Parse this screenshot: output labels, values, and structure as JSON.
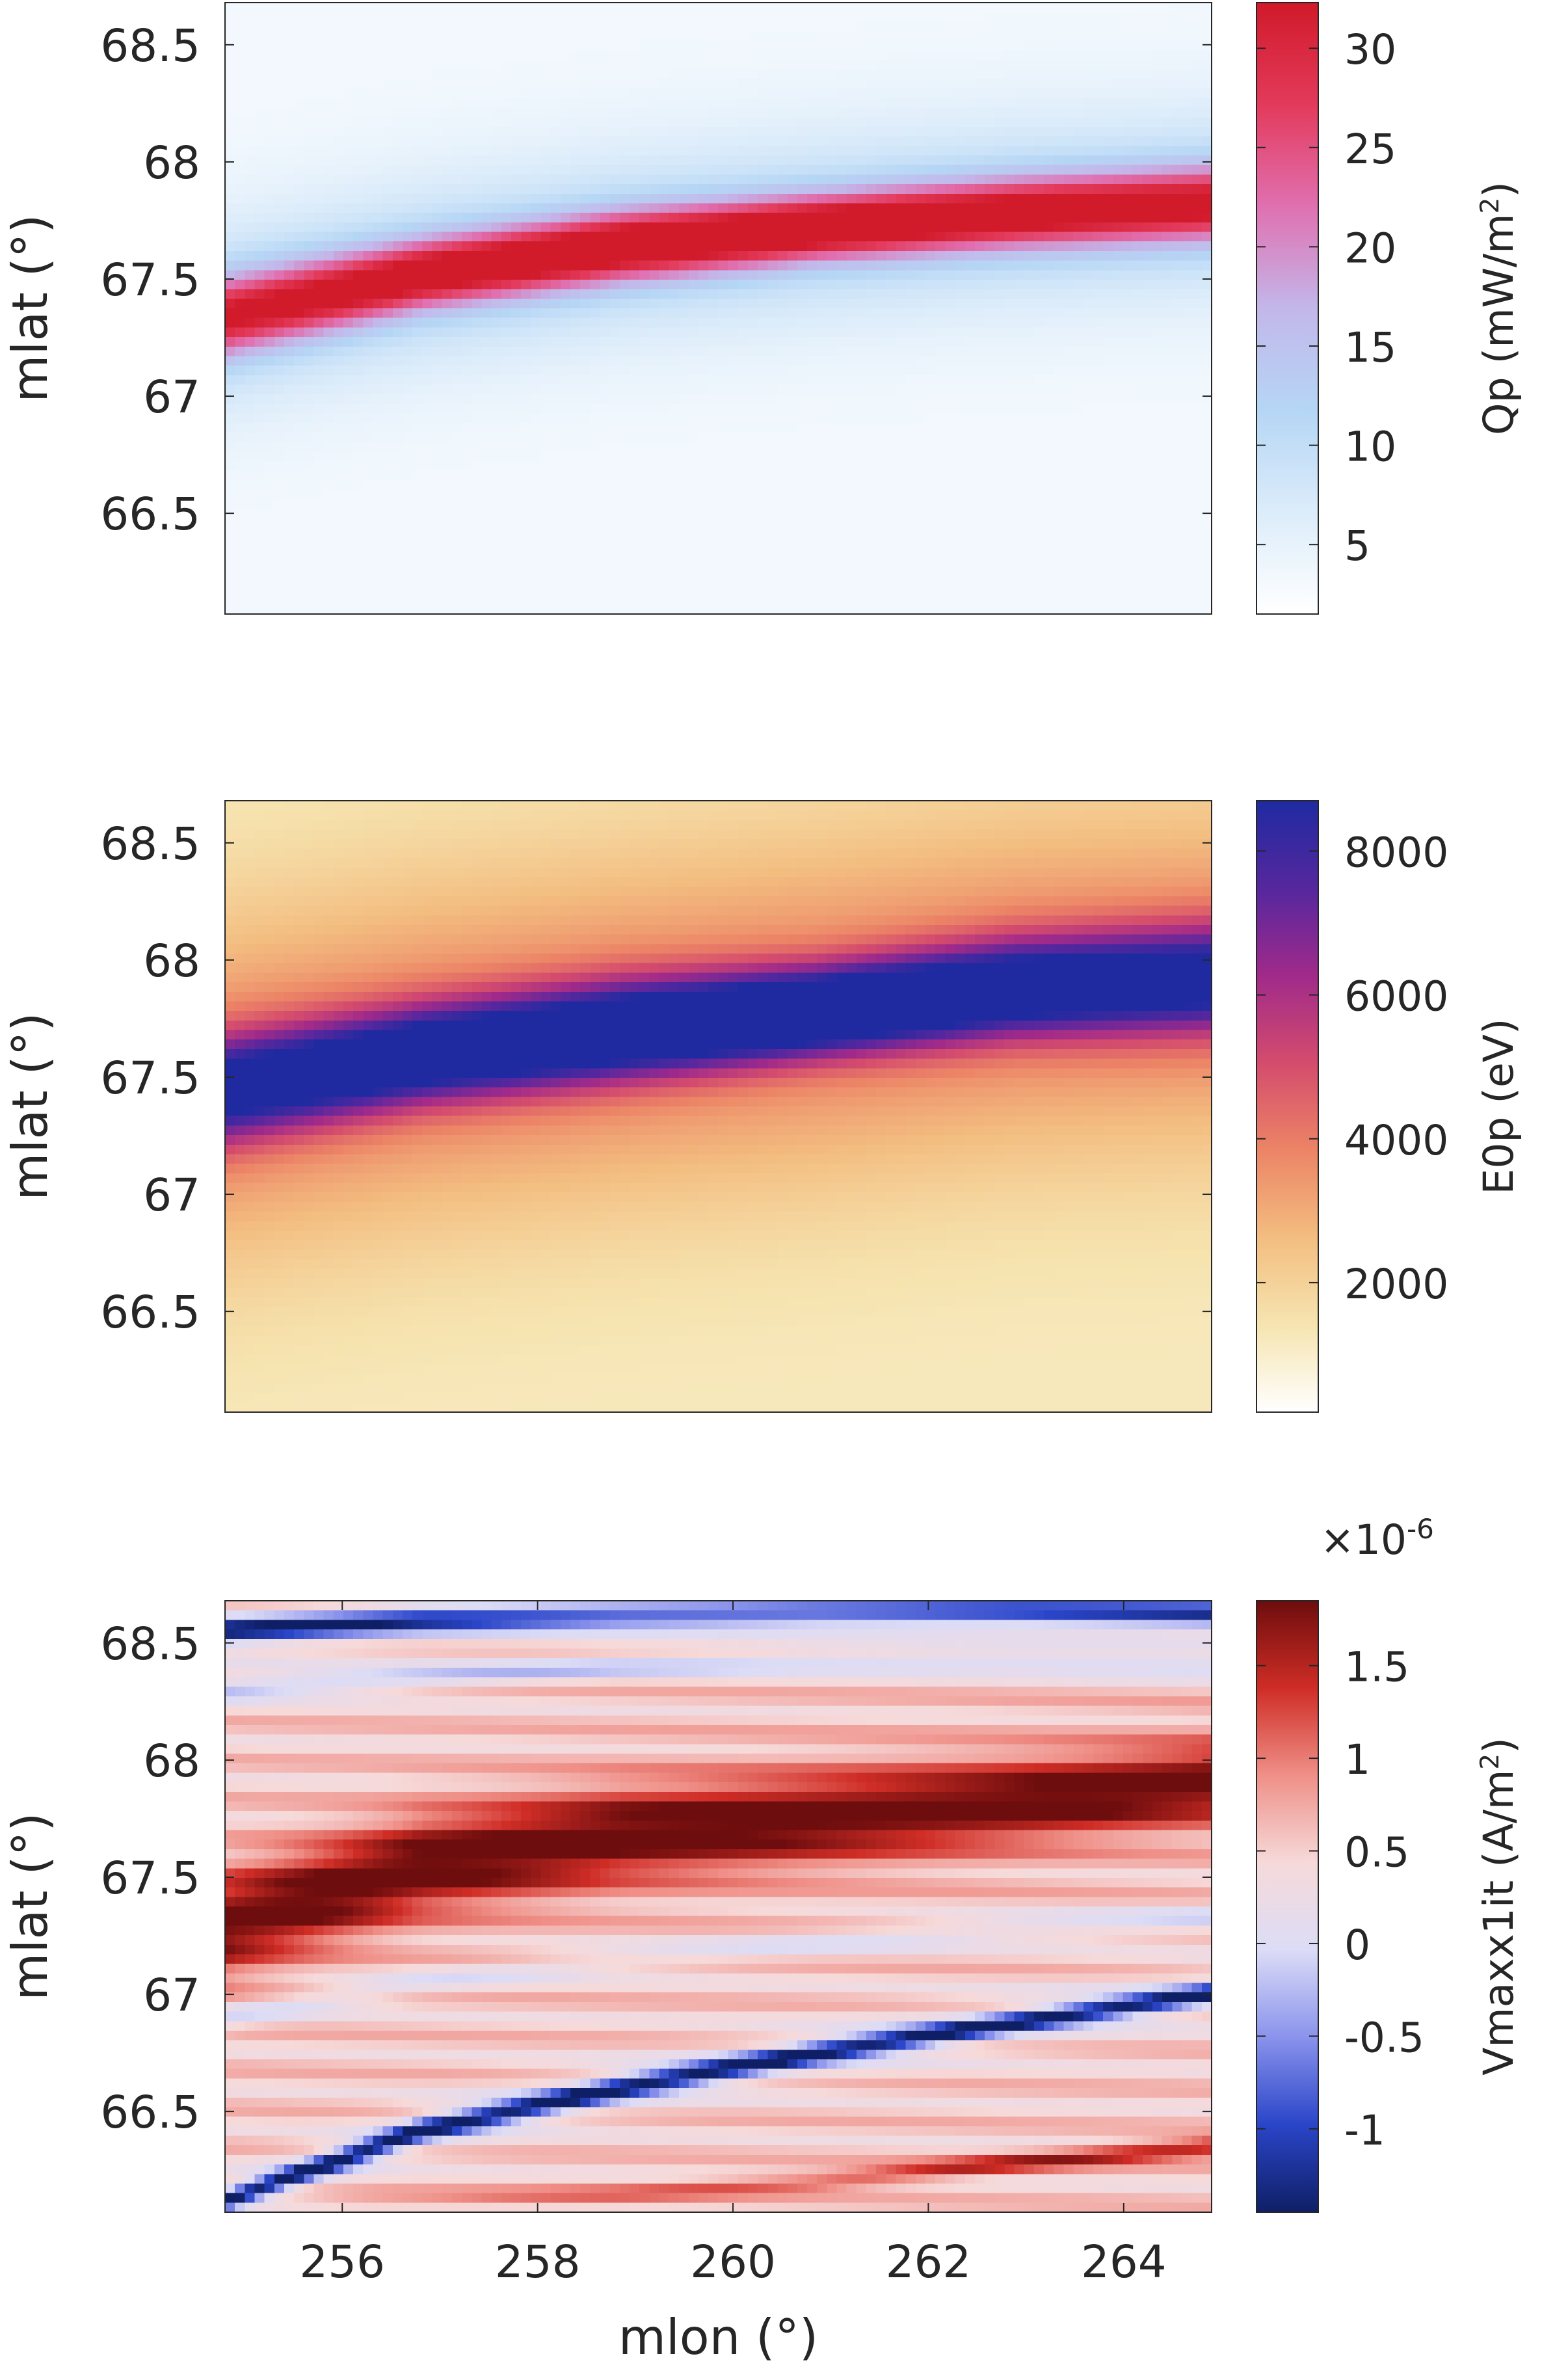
{
  "chart_data": [
    {
      "type": "heatmap",
      "panel": "top",
      "xlabel": "",
      "ylabel": "mlat (°)",
      "xlim": [
        254.8,
        264.9
      ],
      "ylim": [
        66.07,
        68.68
      ],
      "yticks": [
        66.5,
        67,
        67.5,
        68,
        68.5
      ],
      "ytick_labels": [
        "66.5",
        "67",
        "67.5",
        "68",
        "68.5"
      ],
      "xticks": [],
      "colorbar": {
        "label": "Qp (mW/m²)",
        "label_main": "Qp (mW/m",
        "label_sup": "2",
        "label_end": ")",
        "range": [
          1.5,
          32.3
        ],
        "ticks": [
          5,
          10,
          15,
          20,
          25,
          30
        ],
        "tick_labels": [
          "5",
          "10",
          "15",
          "20",
          "25",
          "30"
        ],
        "multiplier": "",
        "colormap": [
          "#ffffff",
          "#dcecfa",
          "#b5d6f5",
          "#c3b7ea",
          "#e070b0",
          "#e33a5b",
          "#d11a2a"
        ]
      },
      "field": {
        "background": 0.06,
        "bands": [
          {
            "lat": [
              67.34,
              67.52,
              67.64,
              67.72,
              67.78,
              67.82
            ],
            "peak": [
              0.72,
              0.85,
              0.92,
              0.96,
              0.86,
              0.78
            ],
            "halfwidth": [
              0.16,
              0.14,
              0.14,
              0.13,
              0.14,
              0.15
            ],
            "halo": 0.25,
            "halowidth": 0.42
          }
        ]
      }
    },
    {
      "type": "heatmap",
      "panel": "middle",
      "xlabel": "",
      "ylabel": "mlat (°)",
      "xlim": [
        254.8,
        264.9
      ],
      "ylim": [
        66.07,
        68.68
      ],
      "yticks": [
        66.5,
        67,
        67.5,
        68,
        68.5
      ],
      "ytick_labels": [
        "66.5",
        "67",
        "67.5",
        "68",
        "68.5"
      ],
      "xticks": [],
      "colorbar": {
        "label": "E0p (eV)",
        "label_main": "E0p (eV)",
        "label_sup": "",
        "label_end": "",
        "range": [
          200,
          8700
        ],
        "ticks": [
          2000,
          4000,
          6000,
          8000
        ],
        "tick_labels": [
          "2000",
          "4000",
          "6000",
          "8000"
        ],
        "multiplier": "",
        "colormap": [
          "#ffffff",
          "#f6e4b0",
          "#f3bd80",
          "#ec8466",
          "#d44c6d",
          "#a02a8a",
          "#55279e",
          "#1f2aa0"
        ]
      },
      "field": {
        "background": 0.12,
        "bands": [
          {
            "lat": [
              67.45,
              67.6,
              67.7,
              67.78,
              67.88,
              67.92
            ],
            "peak": [
              0.72,
              0.84,
              0.9,
              0.98,
              0.82,
              0.72
            ],
            "halfwidth": [
              0.22,
              0.2,
              0.2,
              0.18,
              0.2,
              0.22
            ],
            "halo": 0.32,
            "halowidth": 0.75
          }
        ]
      }
    },
    {
      "type": "heatmap",
      "panel": "bottom",
      "xlabel": "mlon (°)",
      "ylabel": "mlat (°)",
      "xlim": [
        254.8,
        264.9
      ],
      "ylim": [
        66.07,
        68.68
      ],
      "yticks": [
        66.5,
        67,
        67.5,
        68,
        68.5
      ],
      "ytick_labels": [
        "66.5",
        "67",
        "67.5",
        "68",
        "68.5"
      ],
      "xticks": [
        256,
        258,
        260,
        262,
        264
      ],
      "xtick_labels": [
        "256",
        "258",
        "260",
        "262",
        "264"
      ],
      "colorbar": {
        "label": "Vmaxx1it (A/m²)",
        "label_main": "Vmaxx1it (A/m",
        "label_sup": "2",
        "label_end": ")",
        "range": [
          -1.45,
          1.85
        ],
        "ticks": [
          -1,
          -0.5,
          0,
          0.5,
          1,
          1.5
        ],
        "tick_labels": [
          "-1",
          "-0.5",
          "0",
          "0.5",
          "1",
          "1.5"
        ],
        "multiplier": "×10-6",
        "multiplier_base": "×10",
        "multiplier_exp": "-6",
        "colormap": [
          "#0f1f66",
          "#2a45c8",
          "#8a93ec",
          "#dcdcf6",
          "#f6dada",
          "#ef9088",
          "#cf2d26",
          "#6e0d0d"
        ]
      },
      "field": {
        "background": 0.6,
        "bands": [
          {
            "lat": [
              67.3,
              67.55,
              67.68,
              67.75,
              67.82,
              67.9
            ],
            "peak": [
              0.38,
              0.4,
              0.4,
              0.4,
              0.4,
              0.4
            ],
            "halfwidth": [
              0.2,
              0.19,
              0.18,
              0.17,
              0.16,
              0.15
            ],
            "halo": 0.06,
            "halowidth": 0.35
          },
          {
            "lat": [
              66.12,
              66.42,
              66.6,
              66.75,
              66.88,
              67.0
            ],
            "peak": [
              -0.55,
              -0.55,
              -0.55,
              -0.55,
              -0.55,
              -0.55
            ],
            "halfwidth": [
              0.04,
              0.045,
              0.045,
              0.045,
              0.04,
              0.04
            ],
            "halo": -0.1,
            "halowidth": 0.12
          },
          {
            "lat": [
              68.55,
              68.6,
              68.62,
              68.63,
              68.63,
              68.62
            ],
            "peak": [
              -0.5,
              -0.45,
              -0.35,
              -0.35,
              -0.4,
              -0.45
            ],
            "halfwidth": [
              0.05,
              0.05,
              0.05,
              0.05,
              0.05,
              0.05
            ],
            "halo": -0.1,
            "halowidth": 0.14
          },
          {
            "lat": [
              68.3,
              68.35,
              68.4,
              68.42,
              68.42,
              68.4
            ],
            "peak": [
              -0.25,
              -0.2,
              -0.18,
              -0.18,
              -0.2,
              -0.22
            ],
            "halfwidth": [
              0.05,
              0.05,
              0.05,
              0.05,
              0.05,
              0.05
            ],
            "halo": 0,
            "halowidth": 0.1
          },
          {
            "lat": [
              66.9,
              67.05,
              67.15,
              67.22,
              67.28,
              67.32
            ],
            "peak": [
              -0.15,
              -0.12,
              -0.1,
              -0.12,
              -0.14,
              -0.16
            ],
            "halfwidth": [
              0.06,
              0.06,
              0.06,
              0.06,
              0.06,
              0.06
            ],
            "halo": 0,
            "halowidth": 0.1
          },
          {
            "lat": [
              66.1,
              66.12,
              66.15,
              66.2,
              66.28,
              66.35
            ],
            "peak": [
              0.05,
              0.08,
              0.15,
              0.22,
              0.3,
              0.35
            ],
            "halfwidth": [
              0.04,
              0.04,
              0.04,
              0.04,
              0.04,
              0.04
            ],
            "halo": 0,
            "halowidth": 0.08
          }
        ],
        "ripple": 0.07
      }
    }
  ]
}
